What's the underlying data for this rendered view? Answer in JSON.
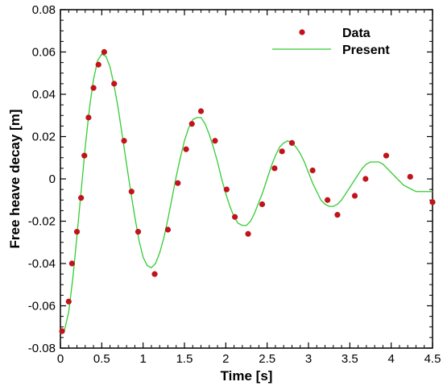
{
  "chart_data": {
    "type": "scatter",
    "xlabel": "Time [s]",
    "ylabel": "Free heave decay [m]",
    "xlim": [
      0,
      4.5
    ],
    "ylim": [
      -0.08,
      0.08
    ],
    "xticks": [
      0,
      0.5,
      1,
      1.5,
      2,
      2.5,
      3,
      3.5,
      4,
      4.5
    ],
    "xtick_labels": [
      "0",
      "0.5",
      "1",
      "1.5",
      "2",
      "2.5",
      "3",
      "3.5",
      "4",
      "4.5"
    ],
    "yticks": [
      -0.08,
      -0.06,
      -0.04,
      -0.02,
      0,
      0.02,
      0.04,
      0.06,
      0.08
    ],
    "ytick_labels": [
      "-0.08",
      "-0.06",
      "-0.04",
      "-0.02",
      "0",
      "0.02",
      "0.04",
      "0.06",
      "0.08"
    ],
    "grid": false,
    "legend_position": "top-right",
    "series": [
      {
        "name": "Data",
        "kind": "points",
        "color": "#c0141a",
        "points": [
          [
            0.02,
            -0.072
          ],
          [
            0.1,
            -0.058
          ],
          [
            0.14,
            -0.04
          ],
          [
            0.2,
            -0.025
          ],
          [
            0.25,
            -0.009
          ],
          [
            0.29,
            0.011
          ],
          [
            0.34,
            0.029
          ],
          [
            0.4,
            0.043
          ],
          [
            0.46,
            0.054
          ],
          [
            0.53,
            0.06
          ],
          [
            0.65,
            0.045
          ],
          [
            0.77,
            0.018
          ],
          [
            0.86,
            -0.006
          ],
          [
            0.94,
            -0.025
          ],
          [
            1.14,
            -0.045
          ],
          [
            1.3,
            -0.024
          ],
          [
            1.42,
            -0.002
          ],
          [
            1.52,
            0.014
          ],
          [
            1.59,
            0.026
          ],
          [
            1.7,
            0.032
          ],
          [
            1.87,
            0.018
          ],
          [
            2.01,
            -0.005
          ],
          [
            2.11,
            -0.018
          ],
          [
            2.27,
            -0.026
          ],
          [
            2.44,
            -0.012
          ],
          [
            2.59,
            0.005
          ],
          [
            2.68,
            0.013
          ],
          [
            2.8,
            0.017
          ],
          [
            3.05,
            0.004
          ],
          [
            3.23,
            -0.01
          ],
          [
            3.35,
            -0.017
          ],
          [
            3.56,
            -0.008
          ],
          [
            3.69,
            0.0
          ],
          [
            3.94,
            0.011
          ],
          [
            4.23,
            0.001
          ],
          [
            4.5,
            -0.011
          ]
        ]
      },
      {
        "name": "Present",
        "kind": "line",
        "color": "#33cc33",
        "points": [
          [
            0.0,
            -0.072
          ],
          [
            0.05,
            -0.0715
          ],
          [
            0.1,
            -0.063
          ],
          [
            0.15,
            -0.047
          ],
          [
            0.2,
            -0.027
          ],
          [
            0.25,
            -0.006
          ],
          [
            0.3,
            0.015
          ],
          [
            0.35,
            0.033
          ],
          [
            0.4,
            0.047
          ],
          [
            0.45,
            0.056
          ],
          [
            0.5,
            0.059
          ],
          [
            0.55,
            0.058
          ],
          [
            0.6,
            0.053
          ],
          [
            0.65,
            0.044
          ],
          [
            0.7,
            0.033
          ],
          [
            0.75,
            0.02
          ],
          [
            0.8,
            0.007
          ],
          [
            0.85,
            -0.006
          ],
          [
            0.9,
            -0.018
          ],
          [
            0.95,
            -0.029
          ],
          [
            1.0,
            -0.037
          ],
          [
            1.05,
            -0.041
          ],
          [
            1.1,
            -0.042
          ],
          [
            1.15,
            -0.04
          ],
          [
            1.2,
            -0.035
          ],
          [
            1.25,
            -0.028
          ],
          [
            1.3,
            -0.019
          ],
          [
            1.35,
            -0.009
          ],
          [
            1.4,
            0.001
          ],
          [
            1.45,
            0.01
          ],
          [
            1.5,
            0.018
          ],
          [
            1.55,
            0.024
          ],
          [
            1.6,
            0.028
          ],
          [
            1.65,
            0.029
          ],
          [
            1.7,
            0.029
          ],
          [
            1.75,
            0.026
          ],
          [
            1.8,
            0.021
          ],
          [
            1.85,
            0.015
          ],
          [
            1.9,
            0.008
          ],
          [
            1.95,
            0.0
          ],
          [
            2.0,
            -0.007
          ],
          [
            2.05,
            -0.013
          ],
          [
            2.1,
            -0.018
          ],
          [
            2.15,
            -0.021
          ],
          [
            2.2,
            -0.022
          ],
          [
            2.25,
            -0.022
          ],
          [
            2.3,
            -0.02
          ],
          [
            2.35,
            -0.016
          ],
          [
            2.4,
            -0.011
          ],
          [
            2.45,
            -0.006
          ],
          [
            2.5,
            0.0
          ],
          [
            2.55,
            0.006
          ],
          [
            2.6,
            0.011
          ],
          [
            2.65,
            0.015
          ],
          [
            2.7,
            0.017
          ],
          [
            2.75,
            0.018
          ],
          [
            2.8,
            0.017
          ],
          [
            2.85,
            0.015
          ],
          [
            2.9,
            0.012
          ],
          [
            2.95,
            0.008
          ],
          [
            3.0,
            0.003
          ],
          [
            3.05,
            -0.002
          ],
          [
            3.1,
            -0.006
          ],
          [
            3.15,
            -0.01
          ],
          [
            3.2,
            -0.012
          ],
          [
            3.25,
            -0.013
          ],
          [
            3.3,
            -0.013
          ],
          [
            3.35,
            -0.012
          ],
          [
            3.4,
            -0.01
          ],
          [
            3.45,
            -0.007
          ],
          [
            3.5,
            -0.004
          ],
          [
            3.55,
            -0.001
          ],
          [
            3.6,
            0.002
          ],
          [
            3.65,
            0.005
          ],
          [
            3.7,
            0.007
          ],
          [
            3.75,
            0.008
          ],
          [
            3.8,
            0.008
          ],
          [
            3.85,
            0.008
          ],
          [
            3.9,
            0.007
          ],
          [
            3.95,
            0.005
          ],
          [
            4.0,
            0.003
          ],
          [
            4.05,
            0.001
          ],
          [
            4.1,
            -0.001
          ],
          [
            4.15,
            -0.003
          ],
          [
            4.2,
            -0.004
          ],
          [
            4.25,
            -0.005
          ],
          [
            4.3,
            -0.006
          ],
          [
            4.35,
            -0.006
          ],
          [
            4.4,
            -0.006
          ],
          [
            4.45,
            -0.006
          ],
          [
            4.5,
            -0.006
          ]
        ]
      }
    ]
  }
}
